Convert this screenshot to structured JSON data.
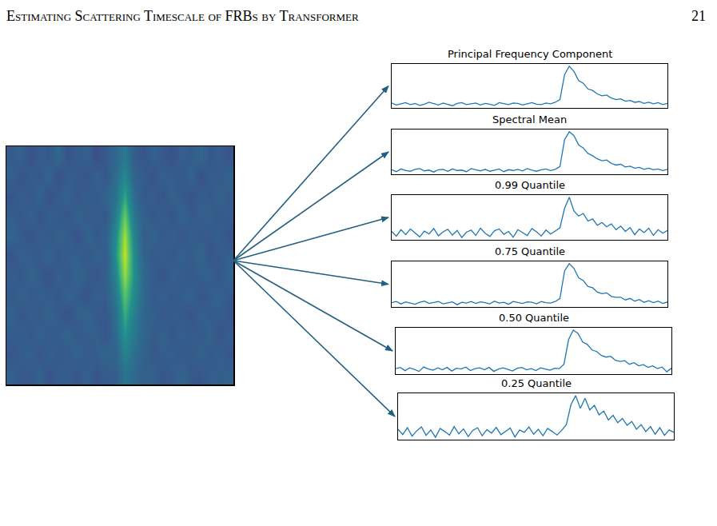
{
  "header": {
    "title": "Estimating Scattering Timescale of FRBs by Transformer",
    "page": "21"
  },
  "chart_data": [
    {
      "type": "heatmap",
      "tick_labels": false,
      "cells": [
        [
          28,
          35,
          22,
          31,
          26,
          38,
          24,
          30,
          33,
          21,
          29,
          36,
          48,
          30,
          25,
          34,
          27,
          23,
          32,
          29,
          37,
          26,
          31,
          24
        ],
        [
          33,
          24,
          30,
          27,
          36,
          22,
          31,
          28,
          25,
          34,
          27,
          40,
          55,
          35,
          29,
          23,
          33,
          30,
          26,
          35,
          22,
          30,
          28,
          34
        ],
        [
          25,
          31,
          27,
          35,
          23,
          30,
          34,
          26,
          32,
          28,
          36,
          42,
          66,
          40,
          27,
          31,
          25,
          34,
          29,
          23,
          32,
          27,
          35,
          29
        ],
        [
          30,
          27,
          34,
          24,
          32,
          28,
          25,
          35,
          29,
          31,
          26,
          48,
          78,
          45,
          33,
          26,
          30,
          24,
          35,
          28,
          31,
          34,
          26,
          30
        ],
        [
          36,
          29,
          25,
          31,
          27,
          34,
          30,
          23,
          36,
          27,
          33,
          55,
          88,
          52,
          30,
          35,
          28,
          32,
          25,
          31,
          27,
          29,
          33,
          24
        ],
        [
          24,
          33,
          30,
          28,
          35,
          25,
          32,
          31,
          27,
          34,
          29,
          58,
          92,
          56,
          34,
          27,
          31,
          26,
          33,
          30,
          36,
          25,
          28,
          32
        ],
        [
          31,
          26,
          34,
          29,
          23,
          33,
          27,
          35,
          30,
          25,
          32,
          52,
          86,
          58,
          38,
          30,
          24,
          34,
          29,
          27,
          31,
          33,
          26,
          35
        ],
        [
          27,
          35,
          28,
          32,
          30,
          26,
          34,
          29,
          24,
          33,
          30,
          46,
          76,
          55,
          37,
          28,
          33,
          27,
          31,
          35,
          25,
          30,
          34,
          28
        ],
        [
          34,
          25,
          31,
          27,
          35,
          29,
          23,
          32,
          35,
          28,
          27,
          40,
          68,
          50,
          36,
          32,
          26,
          30,
          28,
          24,
          33,
          29,
          31,
          26
        ],
        [
          29,
          32,
          26,
          34,
          28,
          31,
          35,
          27,
          30,
          33,
          25,
          38,
          60,
          46,
          35,
          29,
          34,
          25,
          32,
          30,
          27,
          35,
          24,
          31
        ],
        [
          26,
          30,
          33,
          25,
          32,
          27,
          29,
          34,
          28,
          31,
          35,
          34,
          52,
          42,
          33,
          27,
          30,
          33,
          26,
          29,
          34,
          28,
          32,
          27
        ],
        [
          33,
          28,
          27,
          35,
          24,
          30,
          31,
          26,
          33,
          25,
          29,
          30,
          44,
          38,
          31,
          34,
          25,
          29,
          35,
          27,
          26,
          32,
          30,
          33
        ]
      ]
    },
    {
      "type": "line",
      "title": "Principal Frequency Component",
      "color": "#1f77b4",
      "tick_labels": false,
      "values": [
        0.03,
        -0.02,
        0.01,
        0.04,
        -0.01,
        0.02,
        -0.03,
        0.0,
        0.05,
        0.01,
        -0.02,
        0.03,
        0.0,
        -0.04,
        0.02,
        0.04,
        -0.01,
        0.01,
        0.03,
        -0.02,
        0.02,
        0.0,
        -0.03,
        0.04,
        0.01,
        -0.01,
        0.03,
        0.02,
        -0.02,
        0.01,
        0.04,
        0.0,
        -0.01,
        0.03,
        0.01,
        0.05,
        0.12,
        0.78,
        1.0,
        0.86,
        0.62,
        0.55,
        0.4,
        0.36,
        0.27,
        0.22,
        0.24,
        0.16,
        0.12,
        0.14,
        0.08,
        0.1,
        0.05,
        0.07,
        0.02,
        0.05,
        0.01,
        0.04,
        -0.01,
        0.02
      ]
    },
    {
      "type": "line",
      "title": "Spectral Mean",
      "color": "#1f77b4",
      "tick_labels": false,
      "values": [
        0.02,
        -0.03,
        0.04,
        0.0,
        -0.02,
        0.03,
        0.05,
        -0.01,
        0.01,
        -0.04,
        0.02,
        0.03,
        -0.02,
        0.04,
        0.0,
        0.01,
        -0.03,
        0.05,
        0.02,
        -0.01,
        0.03,
        -0.02,
        0.01,
        0.04,
        -0.03,
        0.02,
        0.0,
        0.03,
        -0.01,
        0.05,
        0.01,
        -0.02,
        0.02,
        0.04,
        0.0,
        0.03,
        0.1,
        0.8,
        1.0,
        0.9,
        0.66,
        0.58,
        0.44,
        0.38,
        0.3,
        0.25,
        0.27,
        0.18,
        0.14,
        0.16,
        0.09,
        0.11,
        0.06,
        0.08,
        0.03,
        0.06,
        0.02,
        0.04,
        0.0,
        0.03
      ]
    },
    {
      "type": "line",
      "title": "0.99 Quantile",
      "color": "#1f77b4",
      "tick_labels": false,
      "values": [
        0.05,
        -0.08,
        0.1,
        -0.04,
        0.12,
        0.02,
        -0.1,
        0.06,
        -0.02,
        0.13,
        -0.07,
        0.04,
        0.11,
        -0.05,
        0.08,
        -0.12,
        0.03,
        0.09,
        -0.06,
        0.14,
        0.0,
        -0.09,
        0.07,
        0.12,
        -0.03,
        0.05,
        -0.11,
        0.1,
        0.02,
        -0.06,
        0.13,
        0.04,
        -0.08,
        0.09,
        -0.02,
        0.06,
        0.15,
        0.7,
        1.0,
        0.62,
        0.48,
        0.55,
        0.34,
        0.4,
        0.22,
        0.3,
        0.18,
        0.26,
        0.1,
        0.2,
        0.05,
        0.16,
        -0.04,
        0.12,
        0.02,
        0.14,
        -0.06,
        0.1,
        0.0,
        0.08
      ]
    },
    {
      "type": "line",
      "title": "0.75 Quantile",
      "color": "#1f77b4",
      "tick_labels": false,
      "values": [
        0.01,
        0.04,
        -0.02,
        0.03,
        0.0,
        -0.03,
        0.02,
        0.05,
        -0.01,
        0.02,
        0.04,
        -0.02,
        0.01,
        0.03,
        -0.04,
        0.02,
        0.0,
        0.04,
        -0.01,
        0.03,
        0.01,
        -0.02,
        0.05,
        0.0,
        0.02,
        -0.03,
        0.04,
        0.01,
        -0.01,
        0.03,
        0.02,
        -0.02,
        0.04,
        0.01,
        0.0,
        0.04,
        0.12,
        0.82,
        1.0,
        0.88,
        0.64,
        0.57,
        0.42,
        0.39,
        0.28,
        0.24,
        0.26,
        0.17,
        0.15,
        0.15,
        0.08,
        0.12,
        0.05,
        0.09,
        0.02,
        0.06,
        0.01,
        0.05,
        -0.01,
        0.03
      ]
    },
    {
      "type": "line",
      "title": "0.50 Quantile",
      "color": "#1f77b4",
      "tick_labels": false,
      "values": [
        0.03,
        0.06,
        -0.02,
        0.05,
        0.01,
        -0.04,
        0.07,
        0.02,
        -0.01,
        0.05,
        0.0,
        0.06,
        -0.03,
        0.04,
        0.02,
        0.07,
        -0.02,
        0.03,
        0.05,
        0.0,
        0.06,
        -0.04,
        0.02,
        0.05,
        0.01,
        -0.03,
        0.04,
        0.06,
        0.0,
        0.03,
        -0.02,
        0.05,
        0.02,
        -0.01,
        0.04,
        0.03,
        0.14,
        0.76,
        1.0,
        0.92,
        0.7,
        0.64,
        0.5,
        0.46,
        0.36,
        0.32,
        0.34,
        0.24,
        0.21,
        0.23,
        0.14,
        0.18,
        0.1,
        0.13,
        0.06,
        0.1,
        0.03,
        0.07,
        -0.05,
        0.04
      ]
    },
    {
      "type": "line",
      "title": "0.25 Quantile",
      "color": "#1f77b4",
      "tick_labels": false,
      "values": [
        0.08,
        -0.06,
        0.12,
        -0.1,
        0.04,
        0.14,
        -0.08,
        0.06,
        -0.13,
        0.1,
        0.02,
        -0.07,
        0.15,
        -0.04,
        0.09,
        -0.11,
        0.05,
        0.12,
        -0.09,
        0.07,
        -0.02,
        0.13,
        -0.06,
        0.03,
        0.11,
        -0.12,
        0.06,
        0.0,
        0.14,
        -0.05,
        0.08,
        -0.09,
        0.1,
        0.02,
        -0.07,
        0.05,
        0.2,
        0.72,
        0.95,
        0.62,
        0.88,
        0.58,
        0.7,
        0.45,
        0.55,
        0.32,
        0.44,
        0.25,
        0.36,
        0.18,
        0.28,
        0.08,
        0.2,
        0.02,
        0.15,
        -0.05,
        0.12,
        -0.08,
        0.06,
        0.0
      ]
    }
  ]
}
